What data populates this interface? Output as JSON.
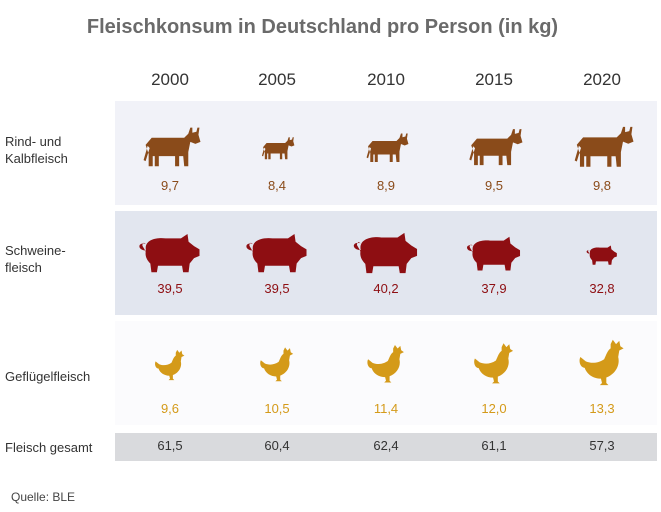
{
  "title": "Fleischkonsum in Deutschland pro Person (in kg)",
  "source": "Quelle: BLE",
  "colors": {
    "beef": "#8a4b1a",
    "pork": "#8e0e12",
    "poultry": "#d49a19"
  },
  "chart_data": {
    "type": "table",
    "title": "Fleischkonsum in Deutschland pro Person (in kg)",
    "columns": [
      "2000",
      "2005",
      "2010",
      "2015",
      "2020"
    ],
    "rows": [
      {
        "label": "Rind- und Kalbfleisch",
        "label_lines": [
          "Rind- und",
          "Kalbfleisch"
        ],
        "icon": "cow-icon",
        "values": [
          9.7,
          8.4,
          8.9,
          9.5,
          9.8
        ],
        "display": [
          "9,7",
          "8,4",
          "8,9",
          "9,5",
          "9,8"
        ]
      },
      {
        "label": "Schweinefleisch",
        "label_lines": [
          "Schweine-",
          "fleisch"
        ],
        "icon": "pig-icon",
        "values": [
          39.5,
          39.5,
          40.2,
          37.9,
          32.8
        ],
        "display": [
          "39,5",
          "39,5",
          "40,2",
          "37,9",
          "32,8"
        ]
      },
      {
        "label": "Geflügelfleisch",
        "label_lines": [
          "Geflügelfleisch"
        ],
        "icon": "chicken-icon",
        "values": [
          9.6,
          10.5,
          11.4,
          12.0,
          13.3
        ],
        "display": [
          "9,6",
          "10,5",
          "11,4",
          "12,0",
          "13,3"
        ]
      },
      {
        "label": "Fleisch gesamt",
        "label_lines": [
          "Fleisch gesamt"
        ],
        "values": [
          61.5,
          60.4,
          62.4,
          61.1,
          57.3
        ],
        "display": [
          "61,5",
          "60,4",
          "62,4",
          "61,1",
          "57,3"
        ]
      }
    ]
  }
}
